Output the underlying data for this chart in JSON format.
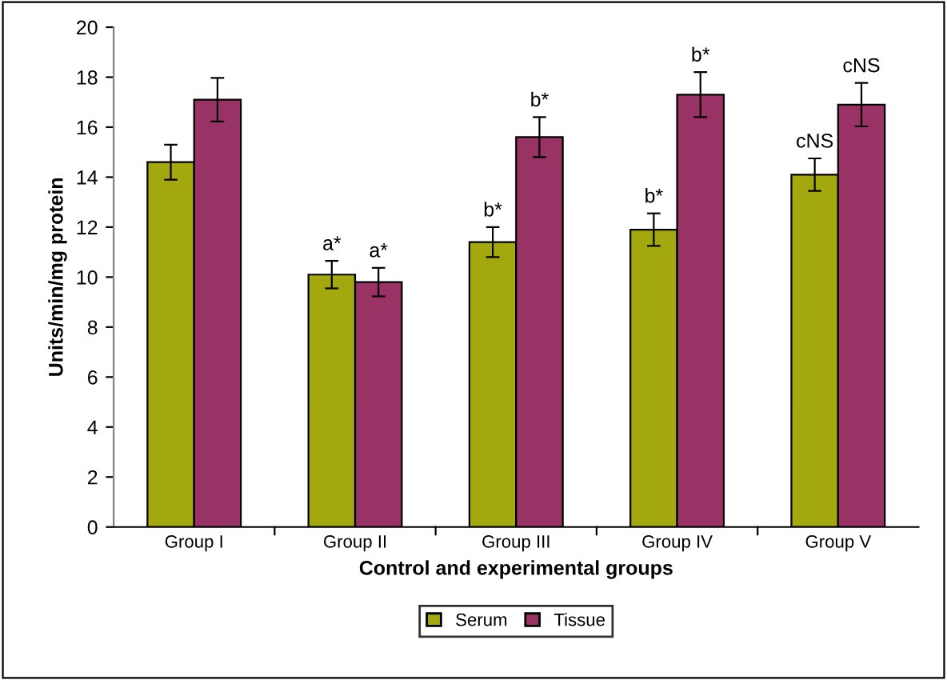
{
  "chart_data": {
    "type": "bar",
    "xlabel": "Control and experimental groups",
    "ylabel": "Units/min/mg protein",
    "categories": [
      "Group I",
      "Group II",
      "Group III",
      "Group IV",
      "Group V"
    ],
    "series": [
      {
        "name": "Serum",
        "color": "#a3a80f",
        "values": [
          14.6,
          10.1,
          11.4,
          11.9,
          14.1
        ],
        "value_labels": [
          null,
          "a*",
          "b*",
          "b*",
          "cNS"
        ],
        "errors": [
          0.7,
          0.55,
          0.6,
          0.65,
          0.65
        ]
      },
      {
        "name": "Tissue",
        "color": "#993366",
        "values": [
          17.1,
          9.8,
          15.6,
          17.3,
          16.9
        ],
        "value_labels": [
          null,
          "a*",
          "b*",
          "b*",
          "cNS"
        ],
        "errors": [
          0.87,
          0.57,
          0.8,
          0.9,
          0.87
        ]
      }
    ],
    "ylim": [
      0,
      20
    ],
    "yticks": [
      0,
      2,
      4,
      6,
      8,
      10,
      12,
      14,
      16,
      18,
      20
    ],
    "grid": false,
    "legend": "bottom"
  }
}
